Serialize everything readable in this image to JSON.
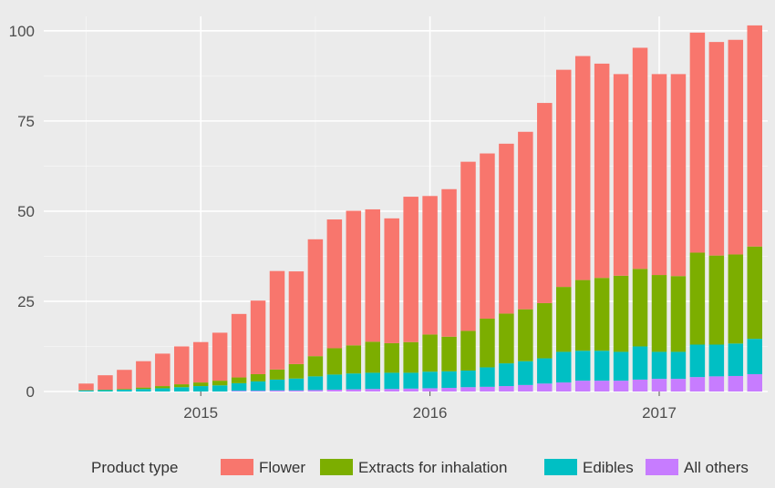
{
  "colors": {
    "background": "#ebebeb",
    "panel": "#ebebeb",
    "gridline": "#ffffff",
    "tick_text": "#4d4d4d"
  },
  "chart_data": {
    "type": "bar",
    "stacked": true,
    "title": "",
    "xlabel": "",
    "ylabel": "",
    "ylim": [
      0,
      104
    ],
    "y_ticks": [
      0,
      25,
      50,
      75,
      100
    ],
    "x_ticks": [
      "2015",
      "2016",
      "2017"
    ],
    "x_tick_months": [
      "2015-01",
      "2016-01",
      "2017-01"
    ],
    "grid": true,
    "legend_position": "bottom",
    "legend_title": "Product type",
    "categories": [
      "2014-07",
      "2014-08",
      "2014-09",
      "2014-10",
      "2014-11",
      "2014-12",
      "2015-01",
      "2015-02",
      "2015-03",
      "2015-04",
      "2015-05",
      "2015-06",
      "2015-07",
      "2015-08",
      "2015-09",
      "2015-10",
      "2015-11",
      "2015-12",
      "2016-01",
      "2016-02",
      "2016-03",
      "2016-04",
      "2016-05",
      "2016-06",
      "2016-07",
      "2016-08",
      "2016-09",
      "2016-10",
      "2016-11",
      "2016-12",
      "2017-01",
      "2017-02",
      "2017-03",
      "2017-04",
      "2017-05",
      "2017-06"
    ],
    "series": [
      {
        "name": "All others",
        "color": "#c77cff",
        "values": [
          0,
          0,
          0,
          0,
          0,
          0,
          0,
          0,
          0.2,
          0.2,
          0.3,
          0.3,
          0.4,
          0.5,
          0.6,
          0.7,
          0.7,
          0.8,
          0.9,
          1.0,
          1.2,
          1.3,
          1.5,
          1.8,
          2.2,
          2.5,
          3.0,
          3.0,
          3.0,
          3.3,
          3.5,
          3.5,
          4.0,
          4.2,
          4.3,
          4.8
        ]
      },
      {
        "name": "Edibles",
        "color": "#00bfc4",
        "values": [
          0.3,
          0.4,
          0.5,
          0.7,
          0.9,
          1.2,
          1.5,
          1.7,
          2.1,
          2.6,
          3.0,
          3.3,
          3.8,
          4.2,
          4.4,
          4.5,
          4.5,
          4.4,
          4.6,
          4.6,
          4.6,
          5.4,
          6.3,
          6.6,
          7.0,
          8.5,
          8.3,
          8.3,
          8.0,
          9.2,
          7.5,
          7.5,
          9.0,
          8.8,
          9.0,
          9.8
        ]
      },
      {
        "name": "Extracts for inhalation",
        "color": "#7cae00",
        "values": [
          0.1,
          0.1,
          0.2,
          0.4,
          0.6,
          0.8,
          1.0,
          1.3,
          1.6,
          2.0,
          2.8,
          4.0,
          5.6,
          7.3,
          7.8,
          8.6,
          8.2,
          8.5,
          10.3,
          9.6,
          11.0,
          13.5,
          13.8,
          14.4,
          15.3,
          18.0,
          19.6,
          20.2,
          21.1,
          21.5,
          21.3,
          21.0,
          25.5,
          24.7,
          24.7,
          25.6
        ]
      },
      {
        "name": "Flower",
        "color": "#f8766d",
        "values": [
          1.8,
          4.0,
          5.3,
          7.3,
          9.0,
          10.5,
          11.2,
          13.3,
          17.6,
          20.4,
          27.3,
          25.7,
          32.4,
          35.7,
          37.3,
          36.7,
          34.6,
          40.3,
          38.4,
          40.9,
          46.9,
          45.8,
          47.1,
          49.2,
          55.5,
          60.2,
          62.1,
          59.4,
          55.9,
          61.3,
          55.7,
          56.0,
          61.0,
          59.2,
          59.5,
          61.3
        ]
      }
    ],
    "legend_order": [
      "Flower",
      "Extracts for inhalation",
      "Edibles",
      "All others"
    ]
  }
}
